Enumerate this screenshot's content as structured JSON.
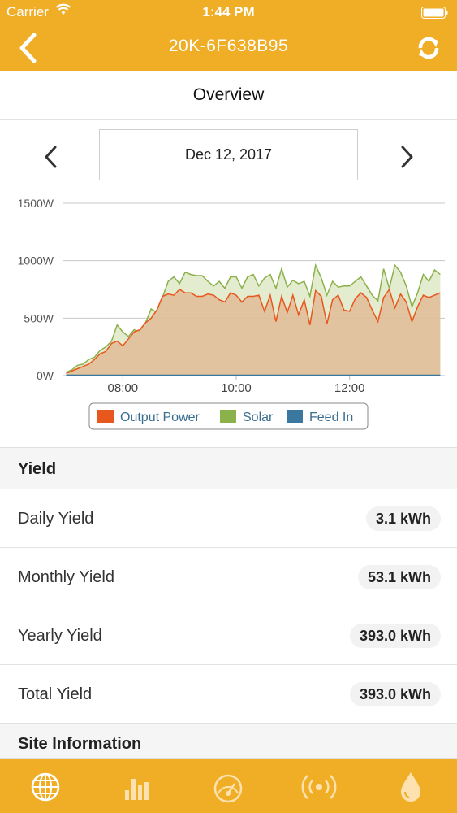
{
  "status_bar": {
    "carrier": "Carrier",
    "time": "1:44 PM"
  },
  "nav": {
    "title": "20K-6F638B95",
    "back_icon": "chevron-left-icon",
    "refresh_icon": "refresh-icon"
  },
  "overview": {
    "title": "Overview"
  },
  "date_picker": {
    "date": "Dec 12, 2017"
  },
  "chart_data": {
    "type": "area",
    "title": "",
    "xlabel": "",
    "ylabel": "",
    "x_ticks": [
      "08:00",
      "10:00",
      "12:00"
    ],
    "y_ticks": [
      "0W",
      "500W",
      "1000W",
      "1500W"
    ],
    "ylim": [
      0,
      1500
    ],
    "xlim_hours": [
      6.95,
      13.68
    ],
    "grid": true,
    "legend_position": "bottom",
    "x_hours": [
      7.0,
      7.1,
      7.2,
      7.3,
      7.4,
      7.5,
      7.6,
      7.7,
      7.8,
      7.9,
      8.0,
      8.1,
      8.2,
      8.3,
      8.4,
      8.5,
      8.6,
      8.7,
      8.8,
      8.9,
      9.0,
      9.1,
      9.2,
      9.3,
      9.4,
      9.5,
      9.6,
      9.7,
      9.8,
      9.9,
      10.0,
      10.1,
      10.2,
      10.3,
      10.4,
      10.5,
      10.6,
      10.7,
      10.8,
      10.9,
      11.0,
      11.1,
      11.2,
      11.3,
      11.4,
      11.5,
      11.6,
      11.7,
      11.8,
      11.9,
      12.0,
      12.1,
      12.2,
      12.3,
      12.4,
      12.5,
      12.6,
      12.7,
      12.8,
      12.9,
      13.0,
      13.1,
      13.2,
      13.3,
      13.4,
      13.5,
      13.6
    ],
    "series": [
      {
        "name": "Output Power",
        "color": "#e8571e",
        "values": [
          20,
          40,
          60,
          80,
          100,
          140,
          190,
          210,
          280,
          300,
          260,
          320,
          380,
          400,
          460,
          500,
          570,
          690,
          710,
          700,
          750,
          720,
          720,
          690,
          690,
          710,
          700,
          660,
          640,
          720,
          700,
          640,
          690,
          690,
          700,
          560,
          700,
          470,
          690,
          550,
          700,
          530,
          660,
          440,
          740,
          690,
          450,
          660,
          700,
          570,
          560,
          670,
          720,
          680,
          570,
          470,
          680,
          750,
          590,
          710,
          640,
          470,
          600,
          700,
          680,
          700,
          720
        ]
      },
      {
        "name": "Solar",
        "color": "#8bb14a",
        "values": [
          30,
          50,
          90,
          100,
          140,
          160,
          220,
          250,
          300,
          440,
          380,
          340,
          400,
          380,
          460,
          580,
          550,
          680,
          820,
          860,
          800,
          900,
          880,
          870,
          870,
          820,
          780,
          820,
          760,
          860,
          860,
          760,
          860,
          880,
          780,
          850,
          880,
          760,
          930,
          770,
          830,
          800,
          820,
          690,
          960,
          850,
          700,
          820,
          770,
          780,
          780,
          820,
          860,
          780,
          700,
          650,
          930,
          760,
          960,
          900,
          780,
          600,
          720,
          880,
          820,
          920,
          880
        ]
      },
      {
        "name": "Feed In",
        "color": "#3a78a0",
        "values": [
          2,
          2,
          2,
          2,
          2,
          2,
          2,
          2,
          2,
          2,
          2,
          2,
          2,
          2,
          2,
          2,
          2,
          2,
          2,
          2,
          2,
          2,
          2,
          2,
          2,
          2,
          2,
          2,
          2,
          2,
          2,
          2,
          2,
          2,
          2,
          2,
          2,
          2,
          2,
          2,
          2,
          2,
          2,
          2,
          2,
          2,
          2,
          2,
          2,
          2,
          2,
          2,
          2,
          2,
          2,
          2,
          2,
          2,
          2,
          2,
          2,
          2,
          2,
          2,
          2,
          2,
          2
        ]
      }
    ]
  },
  "yield": {
    "header": "Yield",
    "rows": [
      {
        "label": "Daily Yield",
        "value": "3.1 kWh"
      },
      {
        "label": "Monthly Yield",
        "value": "53.1 kWh"
      },
      {
        "label": "Yearly Yield",
        "value": "393.0 kWh"
      },
      {
        "label": "Total Yield",
        "value": "393.0 kWh"
      }
    ]
  },
  "site_info": {
    "header": "Site Information"
  },
  "tabbar": {
    "tabs": [
      "globe-icon",
      "bar-chart-icon",
      "gauge-icon",
      "signal-icon",
      "water-drop-icon"
    ]
  },
  "colors": {
    "accent": "#f0ad26"
  }
}
